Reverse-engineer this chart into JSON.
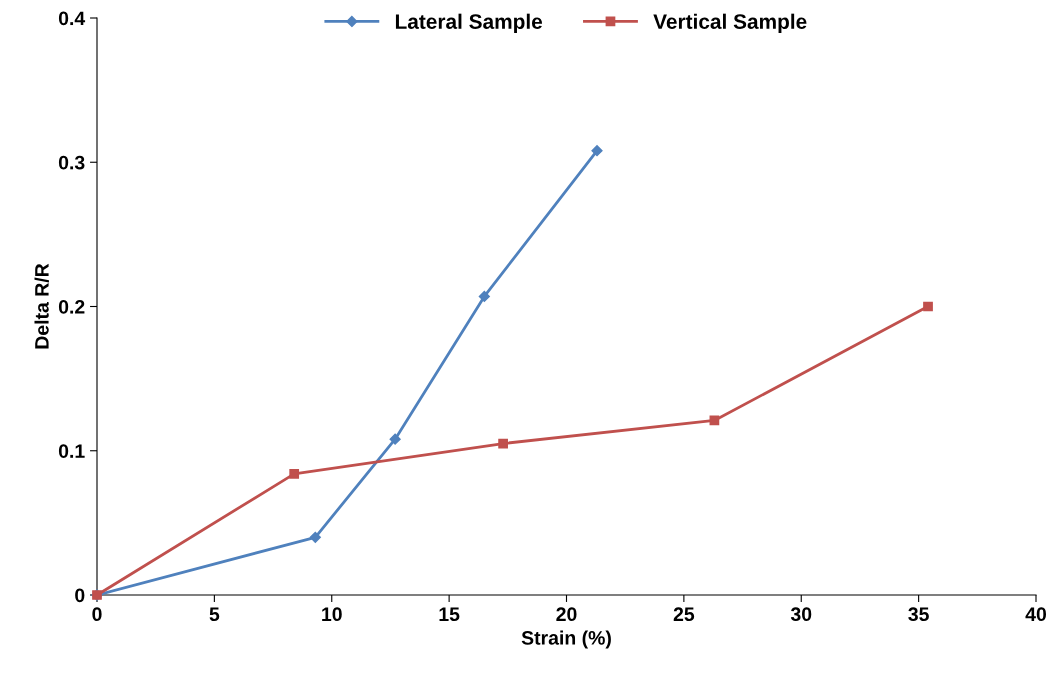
{
  "chart_data": {
    "type": "line",
    "xlabel": "Strain (%)",
    "ylabel": "Delta R/R",
    "xlim": [
      0,
      40
    ],
    "xticks": [
      0,
      5,
      10,
      15,
      20,
      25,
      30,
      35,
      40
    ],
    "ylim": [
      0,
      0.4
    ],
    "yticks": [
      0,
      0.1,
      0.2,
      0.3,
      0.4
    ],
    "grid": false,
    "legend": "top",
    "series": [
      {
        "name": "Lateral Sample",
        "color": "#4f81bd",
        "marker": "diamond",
        "x": [
          0,
          9.3,
          12.7,
          16.5,
          21.3
        ],
        "values": [
          0,
          0.04,
          0.108,
          0.207,
          0.308
        ]
      },
      {
        "name": "Vertical Sample",
        "color": "#c0504d",
        "marker": "square",
        "x": [
          0,
          8.4,
          17.3,
          26.3,
          35.4
        ],
        "values": [
          0,
          0.084,
          0.105,
          0.121,
          0.2
        ]
      }
    ]
  }
}
